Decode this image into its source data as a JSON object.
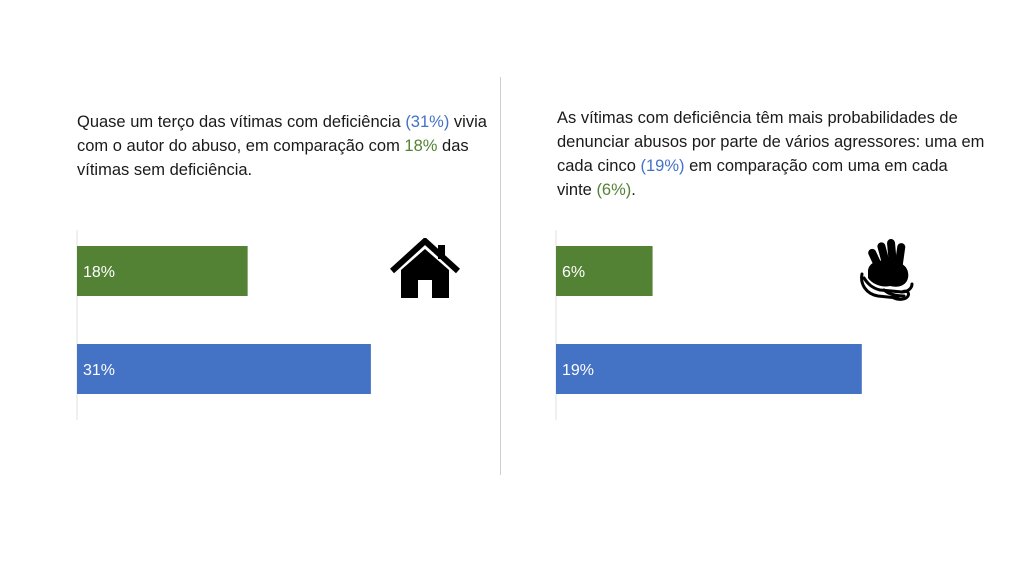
{
  "colors": {
    "green": "#548235",
    "blue": "#4472c4",
    "bar_label": "#ffffff",
    "axis": "#e2e2e2"
  },
  "left": {
    "caption": {
      "part1": "Quase um terço das vítimas com deficiência ",
      "highlight_blue": "(31%)",
      "part2": " vivia com o autor do abuso, em comparação com ",
      "highlight_green": "18%",
      "part3": " das vítimas sem deficiência."
    },
    "icon": "house-icon"
  },
  "right": {
    "caption": {
      "part1": "As vítimas com deficiência têm mais probabilidades de denunciar abusos por parte de vários agressores: uma em cada cinco ",
      "highlight_blue": "(19%)",
      "part2": " em comparação com uma em cada vinte ",
      "highlight_green": "(6%)",
      "part3": "."
    },
    "icon": "sign-language-hands-icon"
  },
  "chart_data": [
    {
      "type": "bar",
      "orientation": "horizontal",
      "xlim": [
        0,
        50
      ],
      "bars": [
        {
          "value": 18,
          "label": "18%",
          "color": "#548235"
        },
        {
          "value": 31,
          "label": "31%",
          "color": "#4472c4"
        }
      ]
    },
    {
      "type": "bar",
      "orientation": "horizontal",
      "xlim": [
        0,
        32
      ],
      "bars": [
        {
          "value": 6,
          "label": "6%",
          "color": "#548235"
        },
        {
          "value": 19,
          "label": "19%",
          "color": "#4472c4"
        }
      ]
    }
  ]
}
